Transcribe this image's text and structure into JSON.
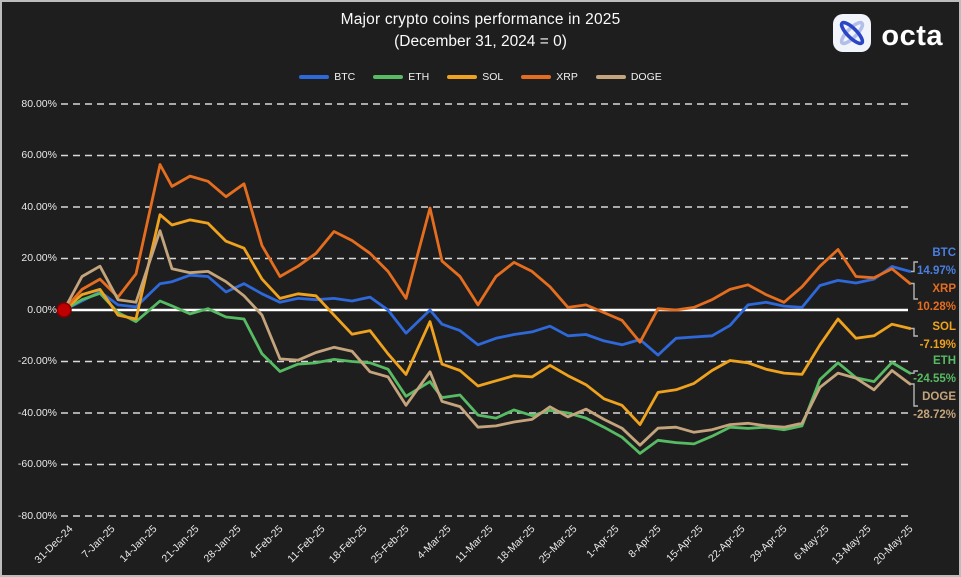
{
  "title": "Major crypto coins performance in 2025",
  "subtitle": "(December 31, 2024 = 0)",
  "logo": {
    "text": "octa",
    "icon": "octa-knot-icon"
  },
  "legend": [
    {
      "label": "BTC",
      "color": "#2e68d9"
    },
    {
      "label": "ETH",
      "color": "#57bb63"
    },
    {
      "label": "SOL",
      "color": "#efa21d"
    },
    {
      "label": "XRP",
      "color": "#e56d1f"
    },
    {
      "label": "DOGE",
      "color": "#c4a47c"
    }
  ],
  "callouts": [
    {
      "label": "BTC",
      "value": "14.97%",
      "color": "#4a7fe0"
    },
    {
      "label": "XRP",
      "value": "10.28%",
      "color": "#e56d1f"
    },
    {
      "label": "SOL",
      "value": "-7.19%",
      "color": "#efa21d"
    },
    {
      "label": "ETH",
      "value": "-24.55%",
      "color": "#57bb63"
    },
    {
      "label": "DOGE",
      "value": "-28.72%",
      "color": "#c4a47c"
    }
  ],
  "chart_data": {
    "type": "line",
    "title": "Major crypto coins performance in 2025",
    "subtitle": "(December 31, 2024 = 0)",
    "unit": "percent change since 31-Dec-2024",
    "grid": "horizontal dashed white lines, solid white zero line",
    "legend_position": "top-center",
    "ylim": [
      -90,
      90
    ],
    "y_ticks": [
      "80.00%",
      "60.00%",
      "40.00%",
      "20.00%",
      "0.00%",
      "-20.00%",
      "-40.00%",
      "-60.00%",
      "-80.00%"
    ],
    "y_tick_values": [
      80,
      60,
      40,
      20,
      0,
      -20,
      -40,
      -60,
      -80
    ],
    "x_ticks": [
      "31-Dec-24",
      "7-Jan-25",
      "14-Jan-25",
      "21-Jan-25",
      "28-Jan-25",
      "4-Feb-25",
      "11-Feb-25",
      "18-Feb-25",
      "25-Feb-25",
      "4-Mar-25",
      "11-Mar-25",
      "18-Mar-25",
      "25-Mar-25",
      "1-Apr-25",
      "8-Apr-25",
      "15-Apr-25",
      "22-Apr-25",
      "29-Apr-25",
      "6-May-25",
      "13-May-25",
      "20-May-25"
    ],
    "x_tick_days": [
      0,
      7,
      14,
      21,
      28,
      35,
      42,
      49,
      56,
      63,
      70,
      77,
      84,
      91,
      98,
      105,
      112,
      119,
      126,
      133,
      140
    ],
    "days": [
      0,
      3,
      6,
      9,
      12,
      16,
      18,
      21,
      24,
      27,
      30,
      33,
      36,
      39,
      42,
      45,
      48,
      51,
      54,
      57,
      61,
      63,
      66,
      69,
      72,
      75,
      78,
      81,
      84,
      87,
      90,
      93,
      96,
      99,
      102,
      105,
      108,
      111,
      114,
      117,
      120,
      123,
      126,
      129,
      132,
      135,
      138,
      141
    ],
    "series": [
      {
        "name": "BTC",
        "color": "#2e68d9",
        "final_label": "14.97%",
        "values": [
          0,
          3.5,
          7.1,
          2.0,
          1.2,
          10.2,
          11.0,
          13.5,
          13.0,
          7.0,
          10.2,
          6.3,
          3.0,
          4.5,
          4.0,
          4.5,
          3.5,
          5.0,
          0.0,
          -9.0,
          0.0,
          -5.5,
          -8.0,
          -13.5,
          -11.0,
          -9.5,
          -8.5,
          -6.3,
          -10.0,
          -9.5,
          -12.0,
          -13.5,
          -11.5,
          -17.5,
          -11.0,
          -10.5,
          -10.0,
          -6.0,
          2.0,
          3.0,
          1.5,
          1.0,
          9.5,
          11.5,
          10.5,
          12.0,
          16.9,
          14.97
        ]
      },
      {
        "name": "ETH",
        "color": "#57bb63",
        "final_label": "-24.55%",
        "values": [
          0,
          4.0,
          6.5,
          -1.0,
          -4.5,
          3.5,
          1.6,
          -1.5,
          0.5,
          -2.7,
          -3.5,
          -17.0,
          -23.9,
          -21.0,
          -20.5,
          -19.2,
          -20.0,
          -20.5,
          -23.0,
          -33.5,
          -27.8,
          -34.0,
          -33.0,
          -40.8,
          -42.0,
          -38.8,
          -41.0,
          -39.0,
          -40.0,
          -42.0,
          -45.5,
          -49.4,
          -55.7,
          -50.6,
          -51.5,
          -52.0,
          -49.0,
          -45.5,
          -46.0,
          -45.5,
          -46.5,
          -45.0,
          -27.0,
          -20.5,
          -26.3,
          -27.8,
          -20.4,
          -24.55
        ]
      },
      {
        "name": "SOL",
        "color": "#efa21d",
        "final_label": "-7.19%",
        "values": [
          0,
          6.0,
          8.0,
          -2.0,
          -3.5,
          37.0,
          33.0,
          35.0,
          33.7,
          26.7,
          24.0,
          12.0,
          4.5,
          6.3,
          5.5,
          -2.0,
          -9.4,
          -8.0,
          -17.0,
          -25.0,
          -4.5,
          -21.0,
          -23.5,
          -29.5,
          -27.5,
          -25.5,
          -26.0,
          -21.5,
          -25.5,
          -29.0,
          -34.5,
          -37.0,
          -44.5,
          -32.0,
          -31.0,
          -28.5,
          -23.5,
          -19.6,
          -20.5,
          -23.0,
          -24.5,
          -25.0,
          -13.5,
          -3.5,
          -11.0,
          -10.0,
          -5.5,
          -7.19
        ]
      },
      {
        "name": "XRP",
        "color": "#e56d1f",
        "final_label": "10.28%",
        "values": [
          0,
          8.0,
          12.0,
          5.0,
          14.0,
          56.5,
          48.0,
          52.0,
          50.0,
          44.0,
          49.0,
          25.0,
          13.0,
          17.0,
          22.0,
          30.5,
          27.0,
          22.0,
          15.0,
          4.5,
          39.6,
          19.0,
          13.0,
          2.0,
          13.0,
          18.5,
          15.0,
          9.0,
          1.0,
          2.0,
          -1.0,
          -4.0,
          -12.5,
          0.5,
          0.0,
          1.0,
          4.0,
          8.0,
          9.8,
          6.0,
          3.0,
          9.0,
          17.0,
          23.5,
          13.0,
          12.5,
          16.0,
          10.28
        ]
      },
      {
        "name": "DOGE",
        "color": "#c4a47c",
        "final_label": "-28.72%",
        "values": [
          0,
          13.0,
          17.0,
          4.0,
          3.0,
          30.8,
          16.0,
          14.5,
          15.0,
          11.0,
          5.5,
          -2.0,
          -19.0,
          -19.5,
          -16.5,
          -14.5,
          -16.0,
          -24.0,
          -26.0,
          -37.0,
          -24.0,
          -35.5,
          -37.5,
          -45.5,
          -45.0,
          -43.5,
          -42.5,
          -37.6,
          -41.5,
          -38.5,
          -42.5,
          -45.9,
          -52.5,
          -45.9,
          -45.5,
          -47.5,
          -46.5,
          -44.5,
          -44.0,
          -45.0,
          -45.5,
          -44.0,
          -30.0,
          -24.5,
          -26.5,
          -31.0,
          -23.5,
          -28.72
        ]
      }
    ],
    "origin_marker": {
      "label": "start point 0.00%",
      "color": "#c00000",
      "day": 0,
      "value": 0
    }
  }
}
